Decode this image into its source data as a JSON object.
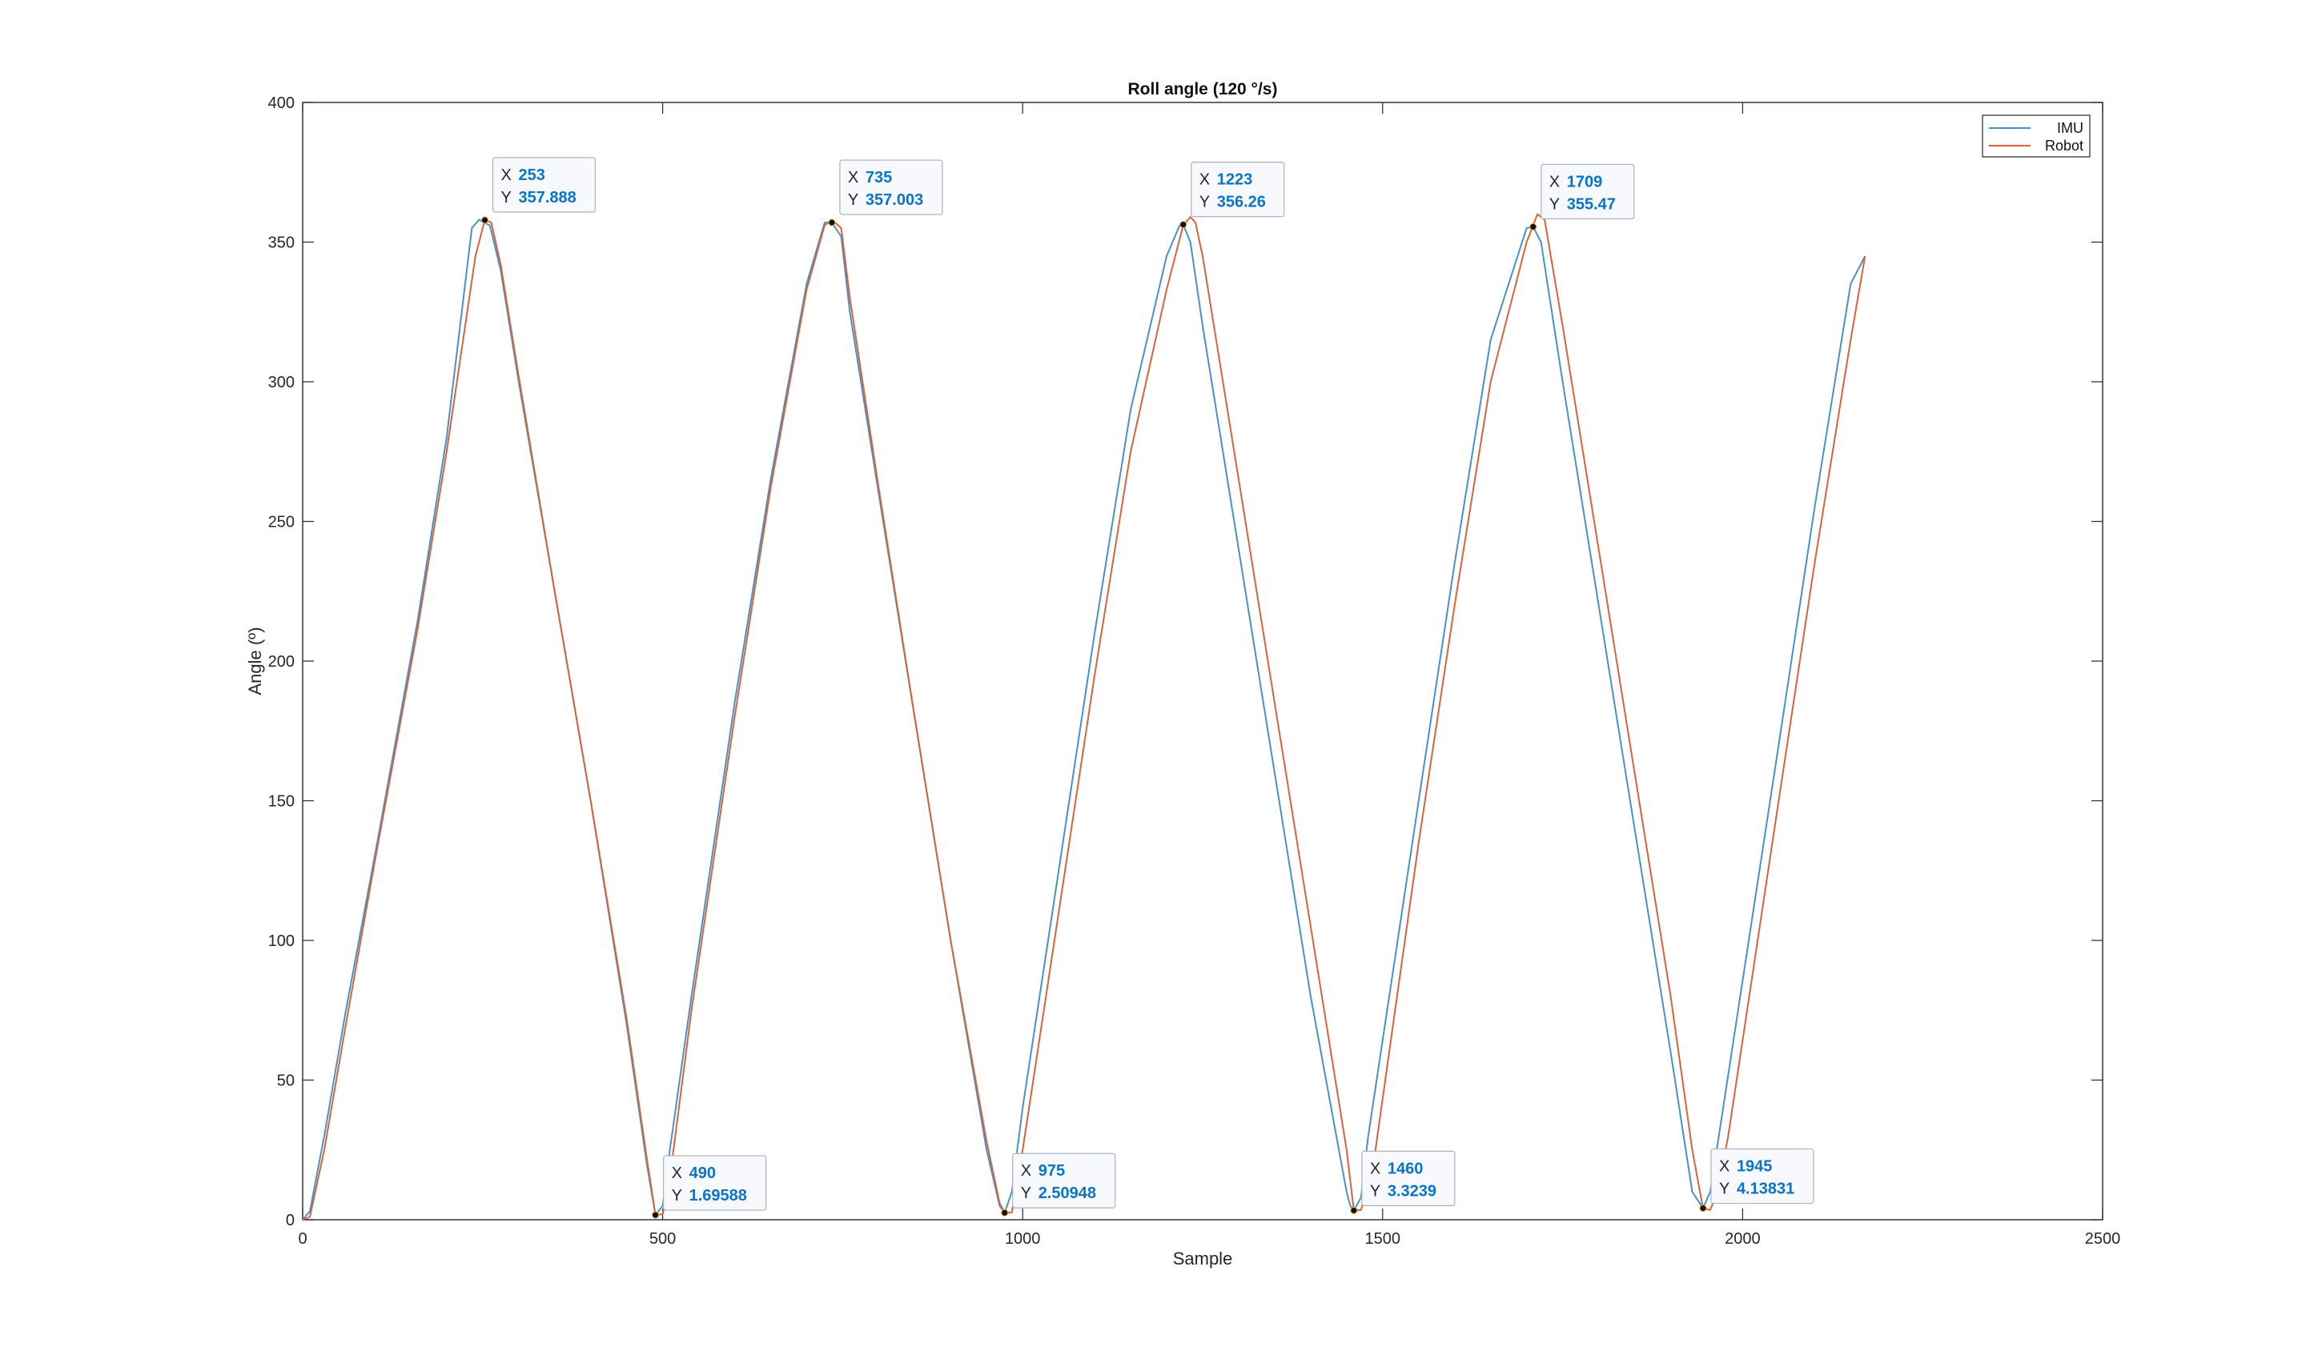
{
  "chart_data": {
    "type": "line",
    "title": "Roll angle (120 °/s)",
    "xlabel": "Sample",
    "ylabel": "Angle (º)",
    "xlim": [
      0,
      2500
    ],
    "ylim": [
      0,
      400
    ],
    "xticks": [
      0,
      500,
      1000,
      1500,
      2000,
      2500
    ],
    "yticks": [
      0,
      50,
      100,
      150,
      200,
      250,
      300,
      350,
      400
    ],
    "grid": false,
    "legend": "top-right",
    "colors": {
      "IMU": "#4a90c8",
      "Robot": "#d6643a",
      "axis": "#262626",
      "tip_value": "#0a74c6"
    },
    "series": [
      {
        "name": "IMU",
        "x": [
          0,
          10,
          30,
          60,
          100,
          160,
          200,
          235,
          245,
          260,
          275,
          300,
          350,
          400,
          450,
          478,
          490,
          500,
          510,
          540,
          600,
          650,
          700,
          725,
          735,
          748,
          760,
          800,
          850,
          900,
          950,
          968,
          975,
          985,
          1000,
          1050,
          1100,
          1150,
          1200,
          1218,
          1223,
          1233,
          1250,
          1300,
          1350,
          1400,
          1450,
          1455,
          1460,
          1470,
          1480,
          1550,
          1600,
          1650,
          1700,
          1709,
          1720,
          1750,
          1800,
          1850,
          1900,
          1930,
          1945,
          1955,
          1970,
          2050,
          2100,
          2150,
          2170
        ],
        "y": [
          0,
          3,
          30,
          75,
          130,
          215,
          280,
          355,
          358,
          356,
          340,
          300,
          225,
          150,
          70,
          20,
          1.7,
          5,
          25,
          80,
          185,
          265,
          335,
          357,
          357,
          352,
          325,
          260,
          180,
          100,
          25,
          5,
          2.5,
          10,
          40,
          125,
          210,
          290,
          345,
          356,
          356.3,
          350,
          320,
          240,
          160,
          80,
          10,
          5,
          3.3,
          8,
          30,
          150,
          235,
          315,
          355,
          355.5,
          350,
          300,
          220,
          140,
          60,
          10,
          4.1,
          10,
          35,
          170,
          255,
          335,
          345
        ]
      },
      {
        "name": "Robot",
        "x": [
          0,
          10,
          30,
          60,
          100,
          160,
          200,
          240,
          253,
          262,
          275,
          300,
          350,
          400,
          450,
          478,
          490,
          500,
          510,
          540,
          600,
          650,
          700,
          725,
          735,
          748,
          760,
          800,
          850,
          900,
          950,
          968,
          975,
          985,
          1000,
          1050,
          1100,
          1150,
          1200,
          1223,
          1233,
          1240,
          1250,
          1300,
          1350,
          1400,
          1450,
          1460,
          1470,
          1480,
          1490,
          1550,
          1600,
          1650,
          1700,
          1715,
          1725,
          1750,
          1800,
          1850,
          1900,
          1930,
          1945,
          1955,
          1965,
          1980,
          2050,
          2100,
          2150,
          2170
        ],
        "y": [
          0,
          1,
          25,
          70,
          128,
          212,
          275,
          345,
          358,
          357,
          342,
          302,
          225,
          150,
          72,
          22,
          1.7,
          2,
          15,
          75,
          180,
          262,
          333,
          356,
          358,
          355,
          330,
          262,
          180,
          100,
          28,
          6,
          2.5,
          2.6,
          25,
          110,
          195,
          275,
          333,
          356,
          359,
          357,
          345,
          265,
          185,
          105,
          25,
          3.3,
          3.5,
          12,
          25,
          135,
          220,
          300,
          350,
          360,
          358,
          320,
          240,
          160,
          80,
          25,
          4.1,
          3.5,
          10,
          30,
          150,
          235,
          315,
          345
        ]
      }
    ],
    "datatips": [
      {
        "x_label": "X",
        "y_label": "Y",
        "x": 253,
        "y": 357.888,
        "x_text": "253",
        "y_text": "357.888"
      },
      {
        "x_label": "X",
        "y_label": "Y",
        "x": 490,
        "y": 1.69588,
        "x_text": "490",
        "y_text": "1.69588"
      },
      {
        "x_label": "X",
        "y_label": "Y",
        "x": 735,
        "y": 357.003,
        "x_text": "735",
        "y_text": "357.003"
      },
      {
        "x_label": "X",
        "y_label": "Y",
        "x": 975,
        "y": 2.50948,
        "x_text": "975",
        "y_text": "2.50948"
      },
      {
        "x_label": "X",
        "y_label": "Y",
        "x": 1223,
        "y": 356.26,
        "x_text": "1223",
        "y_text": "356.26"
      },
      {
        "x_label": "X",
        "y_label": "Y",
        "x": 1460,
        "y": 3.3239,
        "x_text": "1460",
        "y_text": "3.3239"
      },
      {
        "x_label": "X",
        "y_label": "Y",
        "x": 1709,
        "y": 355.47,
        "x_text": "1709",
        "y_text": "355.47"
      },
      {
        "x_label": "X",
        "y_label": "Y",
        "x": 1945,
        "y": 4.13831,
        "x_text": "1945",
        "y_text": "4.13831"
      }
    ]
  }
}
